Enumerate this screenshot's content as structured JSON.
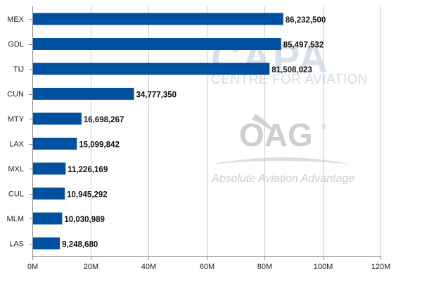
{
  "chart_data": {
    "type": "bar",
    "orientation": "horizontal",
    "categories": [
      "MEX",
      "GDL",
      "TIJ",
      "CUN",
      "MTY",
      "LAX",
      "MXL",
      "CUL",
      "MLM",
      "LAS"
    ],
    "values": [
      86232500,
      85497532,
      81508023,
      34777350,
      16698267,
      15099842,
      11226169,
      10945292,
      10030989,
      9248680
    ],
    "data_labels": [
      "86,232,500",
      "85,497,532",
      "81,508,023",
      "34,777,350",
      "16,698,267",
      "15,099,842",
      "11,226,169",
      "10,945,292",
      "10,030,989",
      "9,248,680"
    ],
    "x_ticks": [
      0,
      20000000,
      40000000,
      60000000,
      80000000,
      100000000,
      120000000
    ],
    "x_tick_labels": [
      "0M",
      "20M",
      "40M",
      "60M",
      "80M",
      "100M",
      "120M"
    ],
    "xlim": [
      0,
      120000000
    ],
    "title": "",
    "xlabel": "",
    "ylabel": "",
    "grid": "vertical",
    "legend": "none",
    "bar_color": "#0050a0"
  },
  "watermarks": {
    "capa": {
      "logo_text": "CAPA",
      "subtitle": "CENTRE FOR AVIATION"
    },
    "oag": {
      "logo_text": "OAG",
      "registered": "®",
      "tagline": "Absolute Aviation Advantage"
    }
  },
  "colors": {
    "gridline": "#cccccc",
    "axis": "#888888"
  }
}
